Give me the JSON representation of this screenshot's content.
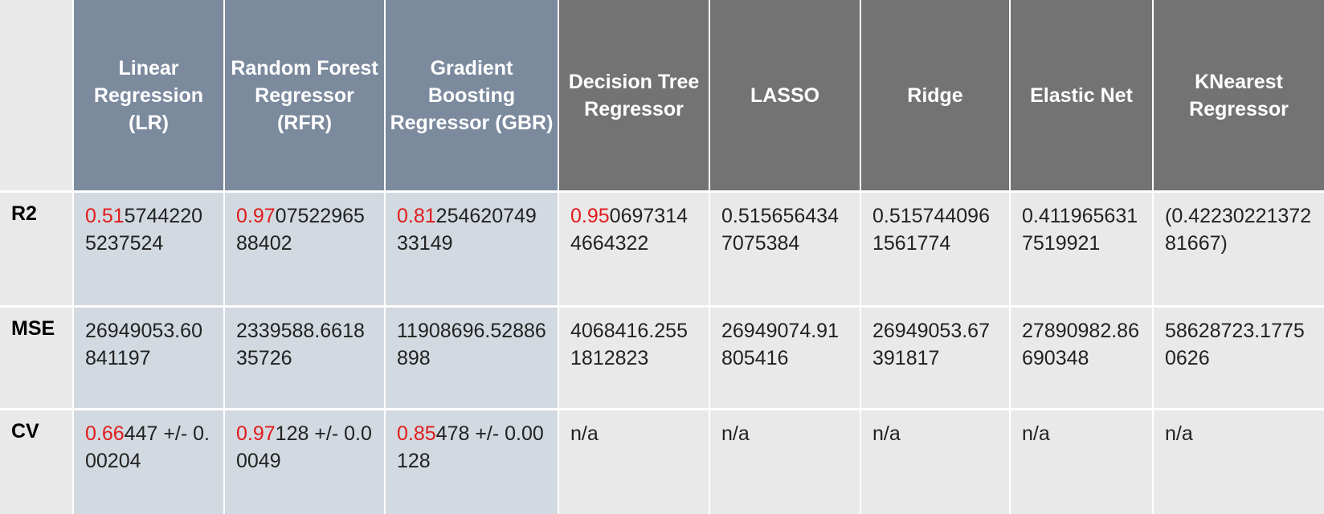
{
  "columns": [
    {
      "label": "Linear Regression (LR)",
      "group": "blue"
    },
    {
      "label": "Random Forest Regressor (RFR)",
      "group": "blue"
    },
    {
      "label": "Gradient Boosting Regressor (GBR)",
      "group": "blue"
    },
    {
      "label": "Decision Tree Regressor",
      "group": "gray"
    },
    {
      "label": "LASSO",
      "group": "gray"
    },
    {
      "label": "Ridge",
      "group": "gray"
    },
    {
      "label": "Elastic Net",
      "group": "gray"
    },
    {
      "label": "KNearest Regressor",
      "group": "gray"
    }
  ],
  "rows": [
    {
      "label": "R2",
      "cells": [
        {
          "highlight": "0.51",
          "rest": "57442205237524"
        },
        {
          "highlight": "0.97",
          "rest": "0752296588402"
        },
        {
          "highlight": "0.81",
          "rest": "25462074933149"
        },
        {
          "highlight": "0.95",
          "rest": "06973144664322"
        },
        {
          "highlight": "",
          "rest": "0.5156564347075384"
        },
        {
          "highlight": "",
          "rest": "0.5157440961561774"
        },
        {
          "highlight": "",
          "rest": "0.4119656317519921"
        },
        {
          "highlight": "",
          "rest": "(0.4223022137281667)"
        }
      ]
    },
    {
      "label": "MSE",
      "cells": [
        {
          "highlight": "",
          "rest": "26949053.60841197"
        },
        {
          "highlight": "",
          "rest": "2339588.661835726"
        },
        {
          "highlight": "",
          "rest": "11908696.52886898"
        },
        {
          "highlight": "",
          "rest": "4068416.2551812823"
        },
        {
          "highlight": "",
          "rest": "26949074.91805416"
        },
        {
          "highlight": "",
          "rest": "26949053.67391817"
        },
        {
          "highlight": "",
          "rest": "27890982.86690348"
        },
        {
          "highlight": "",
          "rest": "58628723.17750626"
        }
      ]
    },
    {
      "label": "CV",
      "cells": [
        {
          "highlight": "0.66",
          "rest": "447 +/- 0.00204"
        },
        {
          "highlight": "0.97",
          "rest": "128 +/- 0.00049"
        },
        {
          "highlight": "0.85",
          "rest": "478 +/- 0.00128"
        },
        {
          "highlight": "",
          "rest": "n/a"
        },
        {
          "highlight": "",
          "rest": "n/a"
        },
        {
          "highlight": "",
          "rest": "n/a"
        },
        {
          "highlight": "",
          "rest": "n/a"
        },
        {
          "highlight": "",
          "rest": "n/a"
        }
      ]
    }
  ],
  "colors": {
    "header_blue": "#7c8a9e",
    "header_gray": "#737373",
    "cell_blue": "#d2d9e0",
    "cell_gray": "#e9e9e9",
    "highlight": "#e01b1b"
  }
}
